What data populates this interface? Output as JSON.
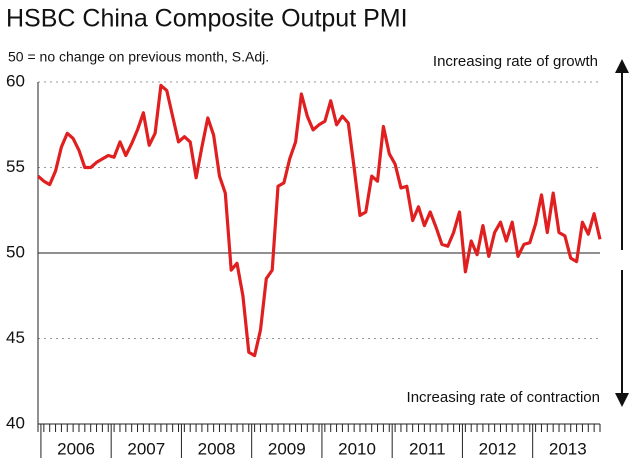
{
  "chart_data": {
    "type": "line",
    "title": "HSBC China Composite Output PMI",
    "subtitle": "50 = no change on previous month, S.Adj.",
    "annotations": [
      "Increasing rate of growth",
      "Increasing rate of contraction"
    ],
    "categories": [
      null,
      null,
      null,
      null,
      null,
      null,
      null,
      "2006",
      null,
      null,
      null,
      null,
      null,
      null,
      null,
      null,
      null,
      null,
      null,
      "2007",
      null,
      null,
      null,
      null,
      null,
      null,
      null,
      null,
      null,
      null,
      null,
      "2008",
      null,
      null,
      null,
      null,
      null,
      null,
      null,
      null,
      null,
      null,
      null,
      "2009",
      null,
      null,
      null,
      null,
      null,
      null,
      null,
      null,
      null,
      null,
      null,
      "2010",
      null,
      null,
      null,
      null,
      null,
      null,
      null,
      null,
      null,
      null,
      null,
      "2011",
      null,
      null,
      null,
      null,
      null,
      null,
      null,
      null,
      null,
      null,
      null,
      "2012",
      null,
      null,
      null,
      null,
      null,
      null,
      null,
      null,
      null,
      null,
      null,
      "2013",
      null,
      null,
      null,
      null,
      null
    ],
    "series": [
      {
        "color": "#e02020",
        "values": [
          54.5,
          54.2,
          54.0,
          54.8,
          56.2,
          57.0,
          56.7,
          56.0,
          55.0,
          55.0,
          55.3,
          55.5,
          55.7,
          55.6,
          56.5,
          55.7,
          56.4,
          57.2,
          58.2,
          56.3,
          57.0,
          59.8,
          59.5,
          58.0,
          56.5,
          56.8,
          56.5,
          54.4,
          56.2,
          57.9,
          56.9,
          54.5,
          53.5,
          49.0,
          49.4,
          47.5,
          44.2,
          44.0,
          45.5,
          48.5,
          49.0,
          53.9,
          54.1,
          55.5,
          56.5,
          59.3,
          58.0,
          57.2,
          57.5,
          57.7,
          58.9,
          57.5,
          58.0,
          57.6,
          55.0,
          52.2,
          52.4,
          54.5,
          54.2,
          57.4,
          55.8,
          55.2,
          53.8,
          53.9,
          51.9,
          52.7,
          51.6,
          52.4,
          51.5,
          50.5,
          50.4,
          51.2,
          52.4,
          48.9,
          50.7,
          49.9,
          51.6,
          49.8,
          51.2,
          51.8,
          50.7,
          51.8,
          49.8,
          50.5,
          50.6,
          51.7,
          53.4,
          51.2,
          53.5,
          51.2,
          51.0,
          49.7,
          49.5,
          51.8,
          51.1,
          52.3,
          50.8
        ]
      }
    ],
    "ylim": [
      40,
      60
    ],
    "yticks": [
      40,
      45,
      50,
      55,
      60
    ],
    "grid": true,
    "baseline": 50
  }
}
